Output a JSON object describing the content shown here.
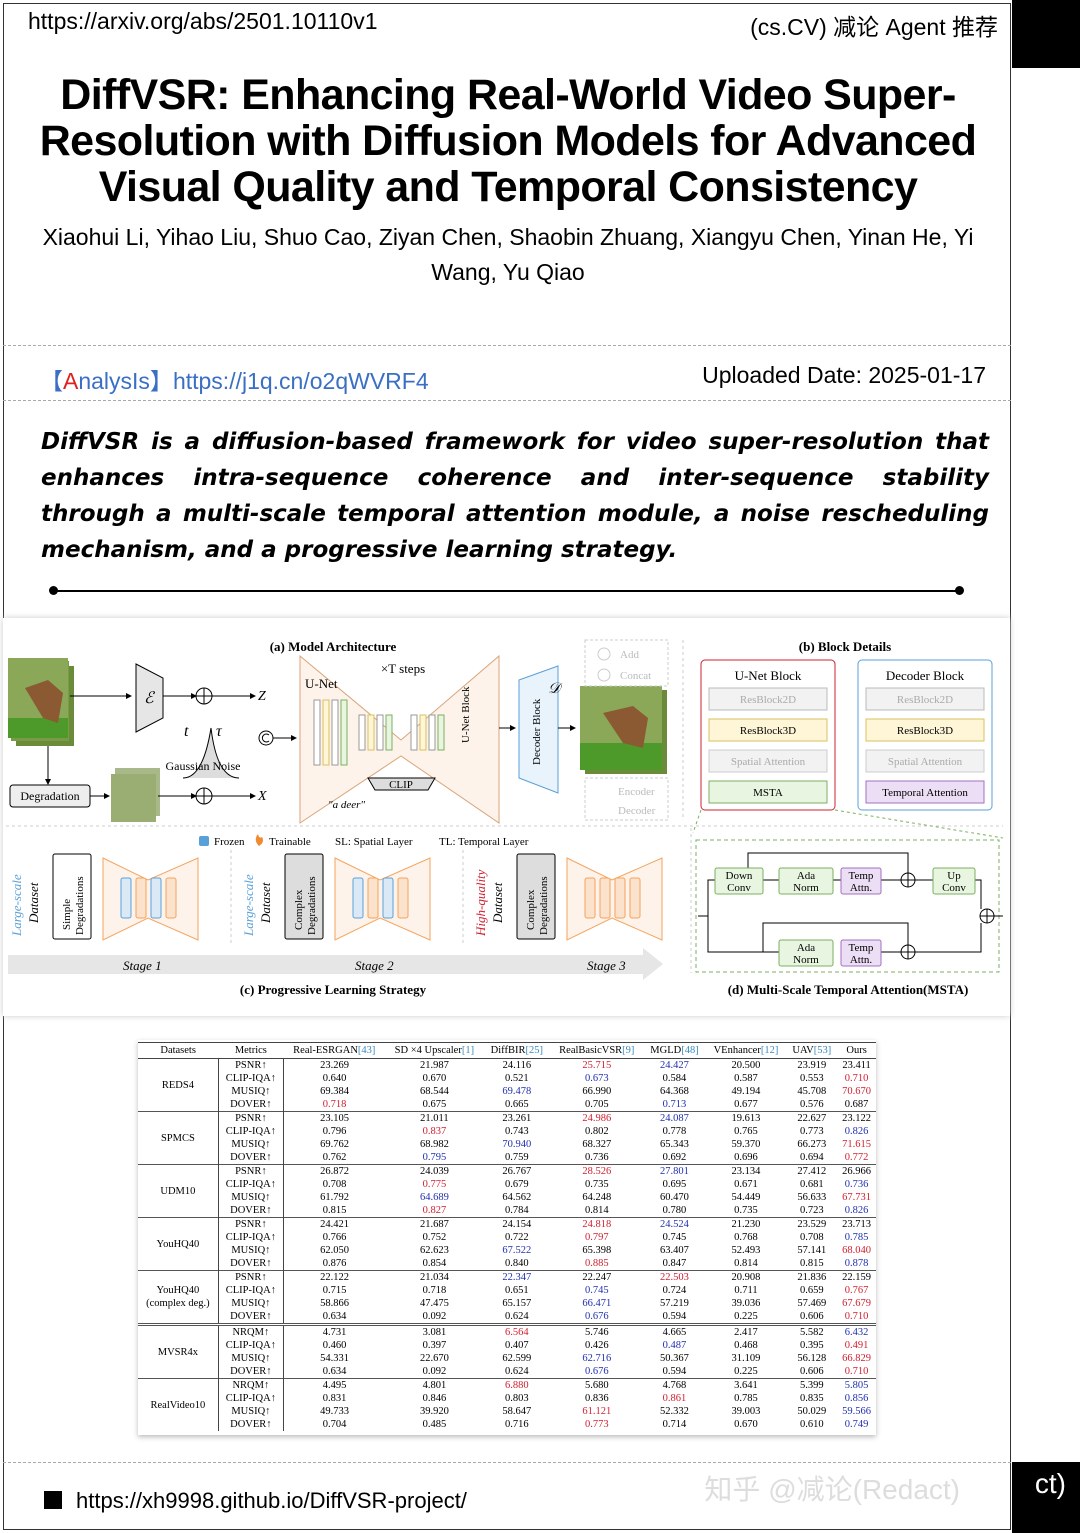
{
  "header": {
    "arxiv_url": "https://arxiv.org/abs/2501.10110v1",
    "category": "(cs.CV) 减论 Agent 推荐"
  },
  "paper": {
    "title": "DiffVSR: Enhancing Real-World Video Super-Resolution with Diffusion Models for Advanced Visual Quality and Temporal Consistency",
    "authors": "Xiaohui Li, Yihao Liu, Shuo Cao, Ziyan Chen, Shaobin Zhuang, Xiangyu Chen, Yinan He, Yi Wang, Yu Qiao",
    "analysis_prefix": "【",
    "analysis_a": "A",
    "analysis_rest": "nalysIs】",
    "analysis_url": "https://j1q.cn/o2qWVRF4",
    "uploaded": "Uploaded Date: 2025-01-17",
    "summary": "DiffVSR is a diffusion-based framework for video super-resolution that enhances intra-sequence coherence and inter-sequence stability through a multi-scale temporal attention module, a noise rescheduling mechanism, and a progressive learning strategy."
  },
  "figure": {
    "a_title": "(a) Model Architecture",
    "t_steps": "×T steps",
    "unet": "U-Net",
    "gaussian": "Gaussian Noise",
    "degradation": "Degradation",
    "clip": "CLIP",
    "prompt": "\"a deer\"",
    "unet_block": "U-Net Block",
    "decoder_block": "Decoder Block",
    "t": "t",
    "tau": "τ",
    "enc": "ℰ",
    "dec": "𝒟",
    "z": "Z",
    "x": "X",
    "legend": {
      "add": "Add",
      "concat": "Concat",
      "encoder": "Encoder",
      "decoder": "Decoder"
    },
    "b_title": "(b) Block Details",
    "unet_blocks": {
      "title": "U-Net Block",
      "items": [
        "ResBlock2D",
        "ResBlock3D",
        "Spatial Attention",
        "MSTA"
      ]
    },
    "dec_blocks": {
      "title": "Decoder Block",
      "items": [
        "ResBlock2D",
        "ResBlock3D",
        "Spatial Attention",
        "Temporal Attention"
      ]
    },
    "c_legend": {
      "frozen": "Frozen",
      "trainable": "Trainable",
      "sl": "SL: Spatial Layer",
      "tl": "TL: Temporal Layer"
    },
    "stages": [
      {
        "data1": "Large-scale",
        "data2": "Dataset",
        "deg": "Simple Degradations",
        "label": "Stage 1"
      },
      {
        "data1": "Large-scale",
        "data2": "Dataset",
        "deg": "Complex Degradations",
        "label": "Stage 2"
      },
      {
        "data1": "High-quality",
        "data2": "Dataset",
        "deg": "Complex Degradations",
        "label": "Stage 3"
      }
    ],
    "c_title": "(c) Progressive Learning Strategy",
    "msta": {
      "down": [
        "Down",
        "Conv"
      ],
      "ada": [
        "Ada",
        "Norm"
      ],
      "temp": [
        "Temp",
        "Attn."
      ],
      "up": [
        "Up",
        "Conv"
      ]
    },
    "d_title": "(d) Multi-Scale Temporal Attention(MSTA)",
    "colors": {
      "green": "#e8f5e0",
      "purple": "#ecdff5",
      "orange": "#f6a35c",
      "blue": "#5aa0d8",
      "red": "#d02030"
    }
  },
  "table": {
    "headers": [
      "Datasets",
      "Metrics",
      "Real-ESRGAN",
      "SD ×4 Upscaler",
      "DiffBIR",
      "RealBasicVSR",
      "MGLD",
      "VEnhancer",
      "UAV",
      "Ours"
    ],
    "refs": [
      "",
      "",
      "[43]",
      "[1]",
      "[25]",
      "[9]",
      "[48]",
      "[12]",
      "[53]",
      ""
    ],
    "groups": [
      {
        "name": [
          "REDS4"
        ],
        "rows": [
          {
            "m": "PSNR↑",
            "v": [
              "23.269",
              "21.987",
              "24.116",
              "25.715",
              "24.427",
              "20.500",
              "23.919",
              "23.411"
            ],
            "h": "...rb..."
          },
          {
            "m": "CLIP-IQA↑",
            "v": [
              "0.640",
              "0.670",
              "0.521",
              "0.673",
              "0.584",
              "0.587",
              "0.553",
              "0.710"
            ],
            "h": "...b...r"
          },
          {
            "m": "MUSIQ↑",
            "v": [
              "69.384",
              "68.544",
              "69.478",
              "66.990",
              "64.368",
              "49.194",
              "45.708",
              "70.670"
            ],
            "h": "..b....r"
          },
          {
            "m": "DOVER↑",
            "v": [
              "0.718",
              "0.675",
              "0.665",
              "0.705",
              "0.713",
              "0.677",
              "0.576",
              "0.687"
            ],
            "h": "r...b..."
          }
        ]
      },
      {
        "name": [
          "SPMCS"
        ],
        "rows": [
          {
            "m": "PSNR↑",
            "v": [
              "23.105",
              "21.011",
              "23.261",
              "24.986",
              "24.087",
              "19.613",
              "22.627",
              "23.122"
            ],
            "h": "...rb..."
          },
          {
            "m": "CLIP-IQA↑",
            "v": [
              "0.796",
              "0.837",
              "0.743",
              "0.802",
              "0.778",
              "0.765",
              "0.773",
              "0.826"
            ],
            "h": ".r.....b"
          },
          {
            "m": "MUSIQ↑",
            "v": [
              "69.762",
              "68.982",
              "70.940",
              "68.327",
              "65.343",
              "59.370",
              "66.273",
              "71.615"
            ],
            "h": "..b....r"
          },
          {
            "m": "DOVER↑",
            "v": [
              "0.762",
              "0.795",
              "0.759",
              "0.736",
              "0.692",
              "0.696",
              "0.694",
              "0.772"
            ],
            "h": ".b.....r"
          }
        ]
      },
      {
        "name": [
          "UDM10"
        ],
        "rows": [
          {
            "m": "PSNR↑",
            "v": [
              "26.872",
              "24.039",
              "26.767",
              "28.526",
              "27.801",
              "23.134",
              "27.412",
              "26.966"
            ],
            "h": "...rb..."
          },
          {
            "m": "CLIP-IQA↑",
            "v": [
              "0.708",
              "0.775",
              "0.679",
              "0.735",
              "0.695",
              "0.671",
              "0.681",
              "0.736"
            ],
            "h": ".r.....b"
          },
          {
            "m": "MUSIQ↑",
            "v": [
              "61.792",
              "64.689",
              "64.562",
              "64.248",
              "60.470",
              "54.449",
              "56.633",
              "67.731"
            ],
            "h": ".b.....r"
          },
          {
            "m": "DOVER↑",
            "v": [
              "0.815",
              "0.827",
              "0.784",
              "0.814",
              "0.780",
              "0.735",
              "0.723",
              "0.826"
            ],
            "h": ".r.....b"
          }
        ]
      },
      {
        "name": [
          "YouHQ40"
        ],
        "rows": [
          {
            "m": "PSNR↑",
            "v": [
              "24.421",
              "21.687",
              "24.154",
              "24.818",
              "24.524",
              "21.230",
              "23.529",
              "23.713"
            ],
            "h": "...rb..."
          },
          {
            "m": "CLIP-IQA↑",
            "v": [
              "0.766",
              "0.752",
              "0.722",
              "0.797",
              "0.745",
              "0.768",
              "0.708",
              "0.785"
            ],
            "h": "...r...b"
          },
          {
            "m": "MUSIQ↑",
            "v": [
              "62.050",
              "62.623",
              "67.522",
              "65.398",
              "63.407",
              "52.493",
              "57.141",
              "68.040"
            ],
            "h": "..b....r"
          },
          {
            "m": "DOVER↑",
            "v": [
              "0.876",
              "0.854",
              "0.840",
              "0.885",
              "0.847",
              "0.814",
              "0.815",
              "0.878"
            ],
            "h": "...r...b"
          }
        ]
      },
      {
        "name": [
          "YouHQ40",
          "(complex deg.)"
        ],
        "rows": [
          {
            "m": "PSNR↑",
            "v": [
              "22.122",
              "21.034",
              "22.347",
              "22.247",
              "22.503",
              "20.908",
              "21.836",
              "22.159"
            ],
            "h": "..b.r..."
          },
          {
            "m": "CLIP-IQA↑",
            "v": [
              "0.715",
              "0.718",
              "0.651",
              "0.745",
              "0.724",
              "0.711",
              "0.659",
              "0.767"
            ],
            "h": "...b...r"
          },
          {
            "m": "MUSIQ↑",
            "v": [
              "58.866",
              "47.475",
              "65.157",
              "66.471",
              "57.219",
              "39.036",
              "57.469",
              "67.679"
            ],
            "h": "...b...r"
          },
          {
            "m": "DOVER↑",
            "v": [
              "0.634",
              "0.092",
              "0.624",
              "0.676",
              "0.594",
              "0.225",
              "0.606",
              "0.710"
            ],
            "h": "...b...r"
          }
        ]
      },
      {
        "name": [
          "MVSR4x"
        ],
        "double": true,
        "rows": [
          {
            "m": "NRQM↑",
            "v": [
              "4.731",
              "3.081",
              "6.564",
              "5.746",
              "4.665",
              "2.417",
              "5.582",
              "6.432"
            ],
            "h": "..r....b"
          },
          {
            "m": "CLIP-IQA↑",
            "v": [
              "0.460",
              "0.397",
              "0.407",
              "0.426",
              "0.487",
              "0.468",
              "0.395",
              "0.491"
            ],
            "h": "....b..r"
          },
          {
            "m": "MUSIQ↑",
            "v": [
              "54.331",
              "22.670",
              "62.599",
              "62.716",
              "50.367",
              "31.109",
              "56.128",
              "66.829"
            ],
            "h": "...b...r"
          },
          {
            "m": "DOVER↑",
            "v": [
              "0.634",
              "0.092",
              "0.624",
              "0.676",
              "0.594",
              "0.225",
              "0.606",
              "0.710"
            ],
            "h": "...b...r"
          }
        ]
      },
      {
        "name": [
          "RealVideo10"
        ],
        "rows": [
          {
            "m": "NRQM↑",
            "v": [
              "4.495",
              "4.801",
              "6.880",
              "5.680",
              "4.768",
              "3.641",
              "5.399",
              "5.805"
            ],
            "h": "..r....b"
          },
          {
            "m": "CLIP-IQA↑",
            "v": [
              "0.831",
              "0.846",
              "0.803",
              "0.836",
              "0.861",
              "0.785",
              "0.835",
              "0.856"
            ],
            "h": "....r..b"
          },
          {
            "m": "MUSIQ↑",
            "v": [
              "49.733",
              "39.920",
              "58.647",
              "61.121",
              "52.332",
              "39.003",
              "50.029",
              "59.566"
            ],
            "h": "...r...b"
          },
          {
            "m": "DOVER↑",
            "v": [
              "0.704",
              "0.485",
              "0.716",
              "0.773",
              "0.714",
              "0.670",
              "0.610",
              "0.749"
            ],
            "h": "...r...b"
          }
        ]
      }
    ]
  },
  "footer": {
    "project_url": "https://xh9998.github.io/DiffVSR-project/",
    "watermark": "知乎 @减论(Redact)",
    "watermark_tail": "ct)"
  }
}
